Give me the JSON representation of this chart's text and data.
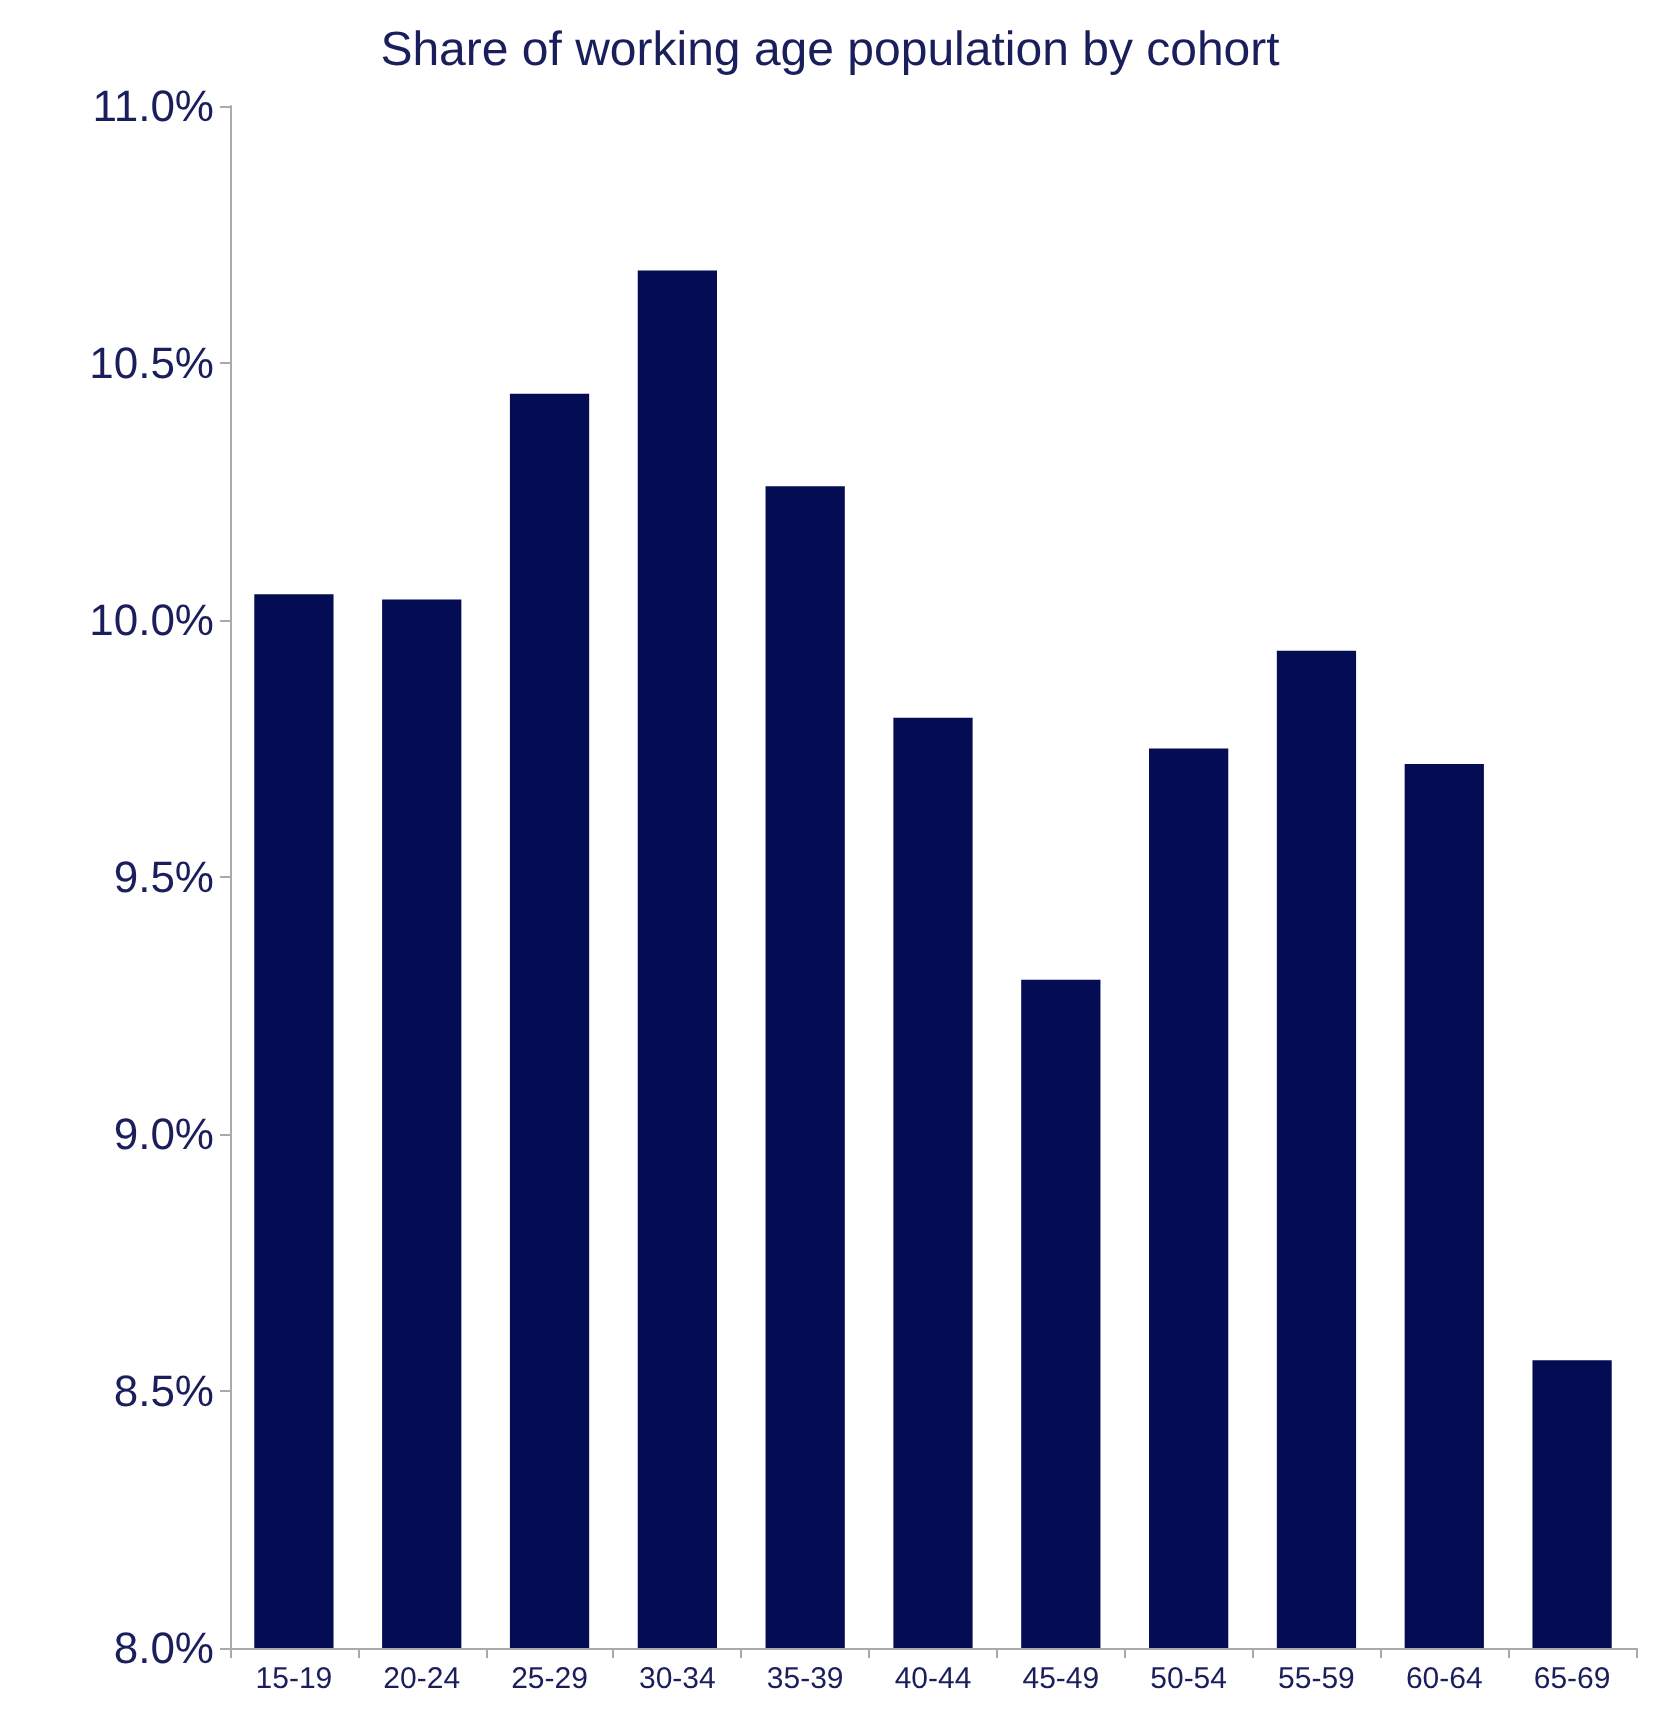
{
  "chart_data": {
    "type": "bar",
    "title": "Share of working age population by cohort",
    "categories": [
      "15-19",
      "20-24",
      "25-29",
      "30-34",
      "35-39",
      "40-44",
      "45-49",
      "50-54",
      "55-59",
      "60-64",
      "65-69"
    ],
    "values": [
      10.05,
      10.04,
      10.44,
      10.68,
      10.26,
      9.81,
      9.3,
      9.75,
      9.94,
      9.72,
      8.56
    ],
    "color": "#040c54",
    "ylim": [
      8,
      11
    ],
    "yticks": [
      {
        "value": 8,
        "label": "8.0%"
      },
      {
        "value": 8.5,
        "label": "8.5%"
      },
      {
        "value": 9,
        "label": "9.0%"
      },
      {
        "value": 9.5,
        "label": "9.5%"
      },
      {
        "value": 10,
        "label": "10.0%"
      },
      {
        "value": 10.5,
        "label": "10.5%"
      },
      {
        "value": 11,
        "label": "11.0%"
      }
    ],
    "grid": false
  }
}
